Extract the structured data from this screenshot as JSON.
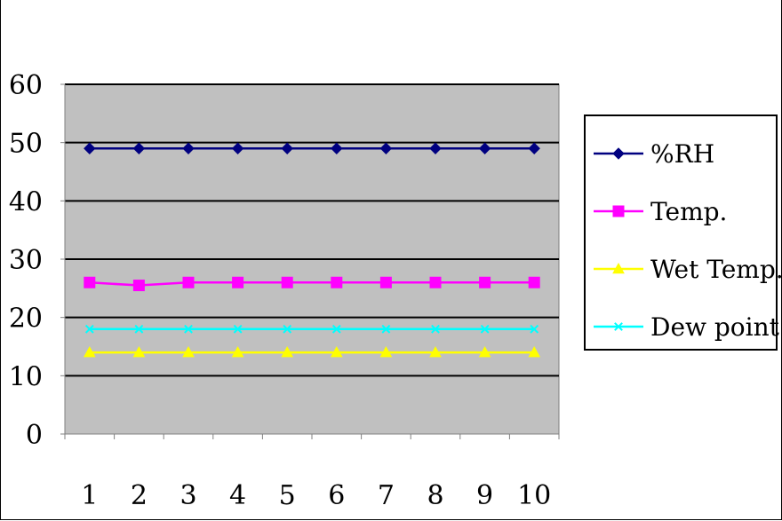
{
  "chart_data": {
    "type": "line",
    "title": "",
    "xlabel": "",
    "ylabel": "",
    "x": [
      1,
      2,
      3,
      4,
      5,
      6,
      7,
      8,
      9,
      10
    ],
    "ylim": [
      0,
      60
    ],
    "yticks": [
      0,
      10,
      20,
      30,
      40,
      50,
      60
    ],
    "grid": true,
    "legend_position": "right",
    "series": [
      {
        "name": "%RH",
        "values": [
          49,
          49,
          49,
          49,
          49,
          49,
          49,
          49,
          49,
          49
        ],
        "color": "#000080",
        "marker": "diamond"
      },
      {
        "name": "Temp.",
        "values": [
          26,
          25.5,
          26,
          26,
          26,
          26,
          26,
          26,
          26,
          26
        ],
        "color": "#ff00ff",
        "marker": "square"
      },
      {
        "name": "Wet Temp.",
        "values": [
          14,
          14,
          14,
          14,
          14,
          14,
          14,
          14,
          14,
          14
        ],
        "color": "#ffff00",
        "marker": "triangle"
      },
      {
        "name": "Dew point",
        "values": [
          18,
          18,
          18,
          18,
          18,
          18,
          18,
          18,
          18,
          18
        ],
        "color": "#00ffff",
        "marker": "x"
      }
    ],
    "plot_background": "#c0c0c0",
    "gridline_color": "#000000"
  }
}
